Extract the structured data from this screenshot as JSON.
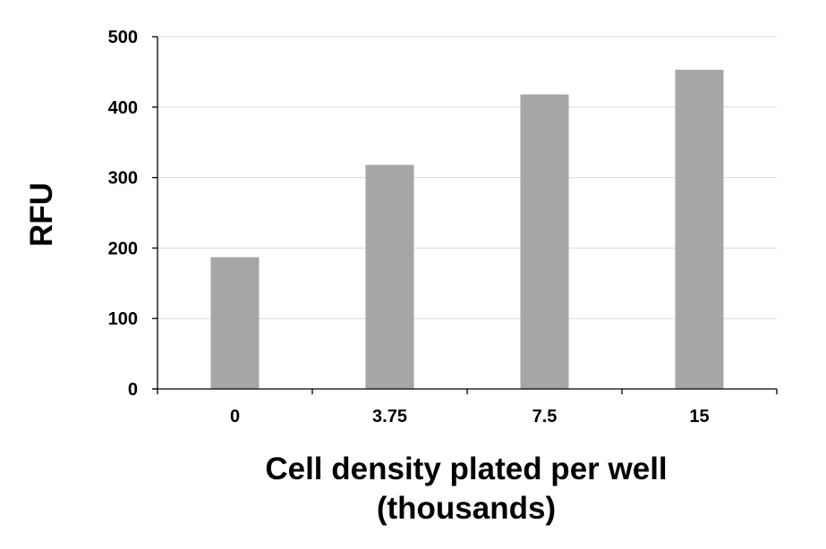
{
  "chart_data": {
    "type": "bar",
    "categories": [
      "0",
      "3.75",
      "7.5",
      "15"
    ],
    "values": [
      187,
      318,
      418,
      453
    ],
    "title": "",
    "xlabel_lines": [
      "Cell density plated per well",
      "(thousands)"
    ],
    "ylabel": "RFU",
    "ylim": [
      0,
      500
    ],
    "yticks": [
      0,
      100,
      200,
      300,
      400,
      500
    ],
    "grid": true,
    "legend": "none",
    "bar_color": "#a6a6a6",
    "grid_color": "#d9d9d9"
  }
}
